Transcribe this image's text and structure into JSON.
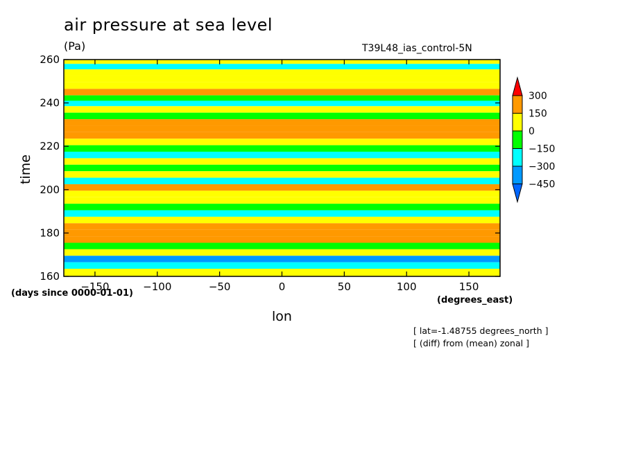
{
  "chart_data": {
    "type": "heatmap",
    "title": "air pressure at sea level",
    "units": "(Pa)",
    "run_label": "T39L48_ias_control-5N",
    "xlabel": "lon",
    "xunits": "(degrees_east)",
    "ylabel": "time",
    "yunits": "(days since 0000-01-01)",
    "xlim": [
      -175,
      175
    ],
    "ylim": [
      160,
      260
    ],
    "xticks": [
      -150,
      -100,
      -50,
      0,
      50,
      100,
      150
    ],
    "yticks": [
      160,
      180,
      200,
      220,
      240,
      260
    ],
    "notes": [
      "[ lat=-1.48755 degrees_north ]",
      "[ (diff) from (mean) zonal ]"
    ],
    "colorbar": {
      "levels": [
        300,
        150,
        0,
        -150,
        -300,
        -450
      ],
      "colors": [
        "#ff0000",
        "#ff9900",
        "#ffff00",
        "#00ff00",
        "#00ffff",
        "#0099ff",
        "#0066ff"
      ]
    },
    "bands": [
      {
        "time": 259,
        "value": 60
      },
      {
        "time": 257,
        "value": -160
      },
      {
        "time": 254,
        "value": 20
      },
      {
        "time": 251,
        "value": 120
      },
      {
        "time": 248,
        "value": 80
      },
      {
        "time": 245,
        "value": 160
      },
      {
        "time": 242,
        "value": -120
      },
      {
        "time": 240,
        "value": -260
      },
      {
        "time": 237,
        "value": 40
      },
      {
        "time": 234,
        "value": -100
      },
      {
        "time": 231,
        "value": 150
      },
      {
        "time": 228,
        "value": 200
      },
      {
        "time": 225,
        "value": 240
      },
      {
        "time": 222,
        "value": 50
      },
      {
        "time": 219,
        "value": -140
      },
      {
        "time": 216,
        "value": -200
      },
      {
        "time": 213,
        "value": 100
      },
      {
        "time": 210,
        "value": -60
      },
      {
        "time": 207,
        "value": 20
      },
      {
        "time": 204,
        "value": -280
      },
      {
        "time": 201,
        "value": 180
      },
      {
        "time": 198,
        "value": 140
      },
      {
        "time": 195,
        "value": 90
      },
      {
        "time": 192,
        "value": -120
      },
      {
        "time": 189,
        "value": -240
      },
      {
        "time": 186,
        "value": 60
      },
      {
        "time": 183,
        "value": 230
      },
      {
        "time": 180,
        "value": 150
      },
      {
        "time": 177,
        "value": 200
      },
      {
        "time": 174,
        "value": -90
      },
      {
        "time": 171,
        "value": 110
      },
      {
        "time": 168,
        "value": -320
      },
      {
        "time": 165,
        "value": -200
      },
      {
        "time": 162,
        "value": 140
      }
    ]
  }
}
